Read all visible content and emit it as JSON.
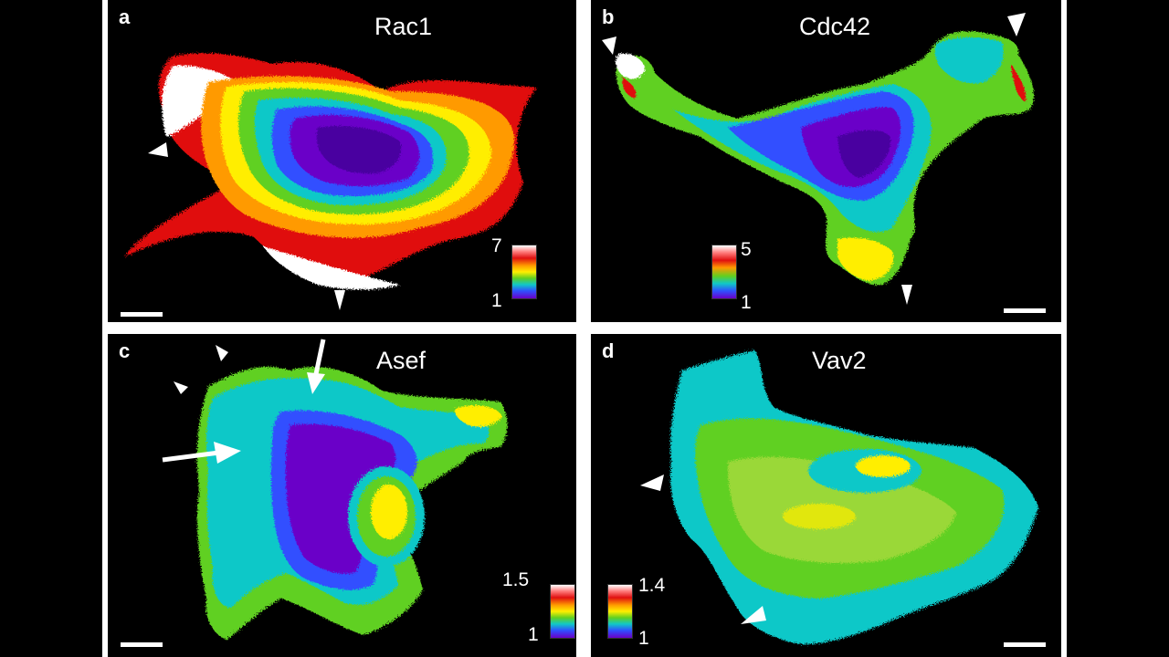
{
  "panels": [
    {
      "letter": "a",
      "title": "Rac1",
      "scale_max": "7",
      "scale_min": "1"
    },
    {
      "letter": "b",
      "title": "Cdc42",
      "scale_max": "5",
      "scale_min": "1"
    },
    {
      "letter": "c",
      "title": "Asef",
      "scale_max": "1.5",
      "scale_min": "1"
    },
    {
      "letter": "d",
      "title": "Vav2",
      "scale_max": "1.4",
      "scale_min": "1"
    }
  ],
  "colormap": [
    "#6a00c8",
    "#3050ff",
    "#10c8c8",
    "#60d020",
    "#ffee00",
    "#ff9a00",
    "#e01010",
    "#ffffff"
  ]
}
